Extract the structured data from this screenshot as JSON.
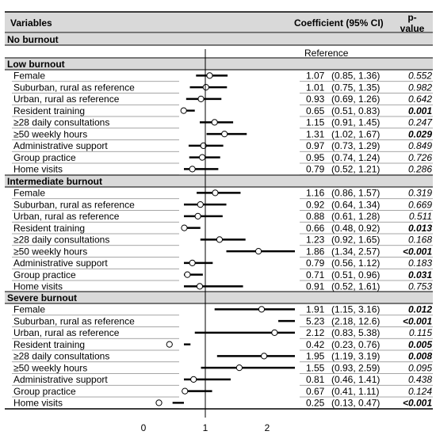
{
  "header": {
    "variables": "Variables",
    "coefficient": "Coefficient (95% CI)",
    "pvalue_line1": "p-",
    "pvalue_line2": "value"
  },
  "reference_group": {
    "label": "No burnout",
    "reference_text": "Reference"
  },
  "chart_data": {
    "type": "forest",
    "reference_line": 1,
    "xlim": [
      0,
      2.6
    ],
    "ticks": [
      0,
      1,
      2
    ],
    "groups": [
      {
        "name": "Low burnout",
        "rows": [
          {
            "label": "Female",
            "coef": 1.07,
            "lo": 0.85,
            "hi": 1.36,
            "ci": "(0.85, 1.36)",
            "p": "0.552",
            "bold": false
          },
          {
            "label": "Suburban, rural as reference",
            "coef": 1.01,
            "lo": 0.75,
            "hi": 1.35,
            "ci": "(0.75, 1.35)",
            "p": "0.982",
            "bold": false
          },
          {
            "label": "Urban, rural as reference",
            "coef": 0.93,
            "lo": 0.69,
            "hi": 1.26,
            "ci": "(0.69, 1.26)",
            "p": "0.642",
            "bold": false
          },
          {
            "label": "Resident training",
            "coef": 0.65,
            "lo": 0.51,
            "hi": 0.83,
            "ci": "(0.51, 0.83)",
            "p": "0.001",
            "bold": true
          },
          {
            "label": "≥28 daily consultations",
            "coef": 1.15,
            "lo": 0.91,
            "hi": 1.45,
            "ci": "(0.91, 1.45)",
            "p": "0.247",
            "bold": false
          },
          {
            "label": "≥50 weekly hours",
            "coef": 1.31,
            "lo": 1.02,
            "hi": 1.67,
            "ci": "(1.02, 1.67)",
            "p": "0.029",
            "bold": true
          },
          {
            "label": "Administrative support",
            "coef": 0.97,
            "lo": 0.73,
            "hi": 1.29,
            "ci": "(0.73, 1.29)",
            "p": "0.849",
            "bold": false
          },
          {
            "label": "Group practice",
            "coef": 0.95,
            "lo": 0.74,
            "hi": 1.24,
            "ci": "(0.74, 1.24)",
            "p": "0.726",
            "bold": false
          },
          {
            "label": "Home visits",
            "coef": 0.79,
            "lo": 0.52,
            "hi": 1.21,
            "ci": "(0.52, 1.21)",
            "p": "0.286",
            "bold": false
          }
        ]
      },
      {
        "name": "Intermediate burnout",
        "rows": [
          {
            "label": "Female",
            "coef": 1.16,
            "lo": 0.86,
            "hi": 1.57,
            "ci": "(0.86, 1.57)",
            "p": "0.319",
            "bold": false
          },
          {
            "label": "Suburban, rural as reference",
            "coef": 0.92,
            "lo": 0.64,
            "hi": 1.34,
            "ci": "(0.64, 1.34)",
            "p": "0.669",
            "bold": false
          },
          {
            "label": "Urban, rural as reference",
            "coef": 0.88,
            "lo": 0.61,
            "hi": 1.28,
            "ci": "(0.61, 1.28)",
            "p": "0.511",
            "bold": false
          },
          {
            "label": "Resident training",
            "coef": 0.66,
            "lo": 0.48,
            "hi": 0.92,
            "ci": "(0.48, 0.92)",
            "p": "0.013",
            "bold": true
          },
          {
            "label": "≥28 daily consultations",
            "coef": 1.23,
            "lo": 0.92,
            "hi": 1.65,
            "ci": "(0.92, 1.65)",
            "p": "0.168",
            "bold": false
          },
          {
            "label": "≥50 weekly hours",
            "coef": 1.86,
            "lo": 1.34,
            "hi": 2.57,
            "ci": "(1.34, 2.57)",
            "p": "<0.001",
            "bold": true
          },
          {
            "label": "Administrative support",
            "coef": 0.79,
            "lo": 0.56,
            "hi": 1.12,
            "ci": "(0.56, 1.12)",
            "p": "0.183",
            "bold": false
          },
          {
            "label": "Group practice",
            "coef": 0.71,
            "lo": 0.51,
            "hi": 0.96,
            "ci": "(0.51, 0.96)",
            "p": "0.031",
            "bold": true
          },
          {
            "label": "Home visits",
            "coef": 0.91,
            "lo": 0.52,
            "hi": 1.61,
            "ci": "(0.52, 1.61)",
            "p": "0.753",
            "bold": false
          }
        ]
      },
      {
        "name": "Severe burnout",
        "rows": [
          {
            "label": "Female",
            "coef": 1.91,
            "lo": 1.15,
            "hi": 3.16,
            "ci": "(1.15, 3.16)",
            "p": "0.012",
            "bold": true
          },
          {
            "label": "Suburban, rural as reference",
            "coef": 5.23,
            "lo": 2.18,
            "hi": 12.6,
            "ci": "(2.18, 12.6)",
            "p": "<0.001",
            "bold": true
          },
          {
            "label": "Urban, rural as reference",
            "coef": 2.12,
            "lo": 0.83,
            "hi": 5.38,
            "ci": "(0.83, 5.38)",
            "p": "0.115",
            "bold": false
          },
          {
            "label": "Resident training",
            "coef": 0.42,
            "lo": 0.23,
            "hi": 0.76,
            "ci": "(0.23, 0.76)",
            "p": "0.005",
            "bold": true
          },
          {
            "label": "≥28 daily consultations",
            "coef": 1.95,
            "lo": 1.19,
            "hi": 3.19,
            "ci": "(1.19, 3.19)",
            "p": "0.008",
            "bold": true
          },
          {
            "label": "≥50 weekly hours",
            "coef": 1.55,
            "lo": 0.93,
            "hi": 2.59,
            "ci": "(0.93, 2.59)",
            "p": "0.095",
            "bold": false
          },
          {
            "label": "Administrative support",
            "coef": 0.81,
            "lo": 0.46,
            "hi": 1.41,
            "ci": "(0.46, 1.41)",
            "p": "0.438",
            "bold": false
          },
          {
            "label": "Group practice",
            "coef": 0.67,
            "lo": 0.41,
            "hi": 1.11,
            "ci": "(0.41, 1.11)",
            "p": "0.124",
            "bold": false
          },
          {
            "label": "Home visits",
            "coef": 0.25,
            "lo": 0.13,
            "hi": 0.47,
            "ci": "(0.13, 0.47)",
            "p": "<0.001",
            "bold": true
          }
        ]
      }
    ]
  }
}
